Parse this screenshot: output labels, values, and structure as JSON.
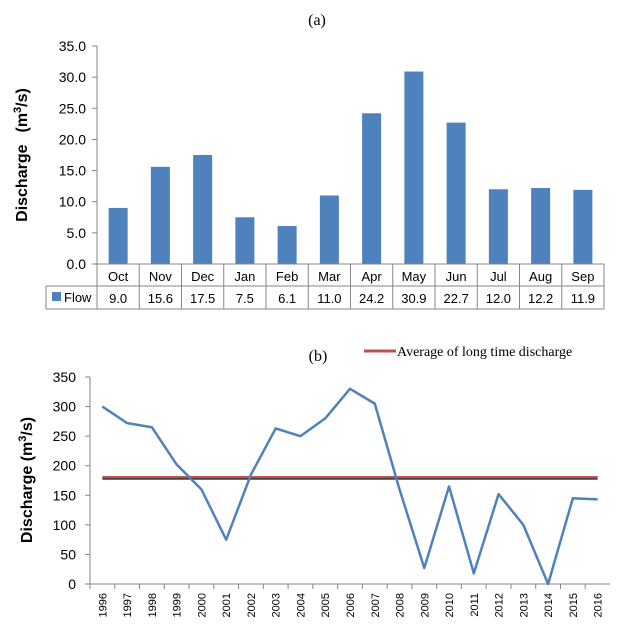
{
  "chart_data": [
    {
      "type": "bar",
      "title": "(a)",
      "ylabel": "Discharge",
      "ylabel_unit": "(m",
      "ylabel_sup": "3",
      "ylabel_tail": "/s)",
      "ylim": [
        0,
        35
      ],
      "yticks": [
        "0.0",
        "5.0",
        "10.0",
        "15.0",
        "20.0",
        "25.0",
        "30.0",
        "35.0"
      ],
      "categories": [
        "Oct",
        "Nov",
        "Dec",
        "Jan",
        "Feb",
        "Mar",
        "Apr",
        "May",
        "Jun",
        "Jul",
        "Aug",
        "Sep"
      ],
      "series": [
        {
          "name": "Flow",
          "color": "#4f81bd",
          "values": [
            9.0,
            15.6,
            17.5,
            7.5,
            6.1,
            11.0,
            24.2,
            30.9,
            22.7,
            12.0,
            12.2,
            11.9
          ],
          "labels": [
            "9.0",
            "15.6",
            "17.5",
            "7.5",
            "6.1",
            "11.0",
            "24.2",
            "30.9",
            "22.7",
            "12.0",
            "12.2",
            "11.9"
          ]
        }
      ],
      "data_table": true,
      "grid": false
    },
    {
      "type": "line",
      "title": "(b)",
      "ylabel": "Discharge (m",
      "ylabel_sup": "3",
      "ylabel_tail": "/s)",
      "ylim": [
        0,
        350
      ],
      "yticks": [
        "0",
        "50",
        "100",
        "150",
        "200",
        "250",
        "300",
        "350"
      ],
      "x": [
        "1996",
        "1997",
        "1998",
        "1999",
        "2000",
        "2001",
        "2002",
        "2003",
        "2004",
        "2005",
        "2006",
        "2007",
        "2008",
        "2009",
        "2010",
        "2011",
        "2012",
        "2013",
        "2014",
        "2015",
        "2016"
      ],
      "series": [
        {
          "name": "",
          "color": "#4f81bd",
          "values": [
            300,
            272,
            265,
            202,
            160,
            75,
            185,
            263,
            250,
            280,
            330,
            305,
            160,
            27,
            165,
            18,
            152,
            100,
            0,
            145,
            143
          ]
        },
        {
          "name": "Average of long time discharge",
          "color": "#c0504d",
          "shadow": "#404040",
          "values": [
            181,
            181,
            181,
            181,
            181,
            181,
            181,
            181,
            181,
            181,
            181,
            181,
            181,
            181,
            181,
            181,
            181,
            181,
            181,
            181,
            181
          ]
        }
      ],
      "legend": "top-right",
      "grid": false
    }
  ]
}
